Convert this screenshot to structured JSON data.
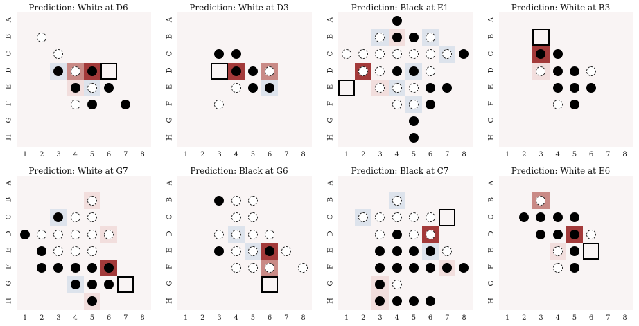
{
  "rows": [
    "A",
    "B",
    "C",
    "D",
    "E",
    "F",
    "G",
    "H"
  ],
  "cols": [
    "1",
    "2",
    "3",
    "4",
    "5",
    "6",
    "7",
    "8"
  ],
  "colors": {
    "board": "#f9f4f4",
    "heat_hi": "#a33a3a",
    "heat_mid": "#c98a86",
    "heat_low": "#f2dedd",
    "cool": "#dde3ec"
  },
  "boards": [
    {
      "title": "Prediction: White at D6",
      "target": "D6",
      "black": [
        "D3",
        "D5",
        "E4",
        "E6",
        "F5",
        "F7"
      ],
      "white": [
        "B2",
        "C3",
        "D4",
        "E5",
        "F4"
      ],
      "heat": {
        "D5": "hi",
        "D4": "mid",
        "E4": "low",
        "E5": "cool",
        "D3": "cool"
      }
    },
    {
      "title": "Prediction: White at D3",
      "target": "D3",
      "black": [
        "C3",
        "C4",
        "D4",
        "D5",
        "E5",
        "E6"
      ],
      "white": [
        "D6",
        "E4",
        "F3"
      ],
      "heat": {
        "D4": "hi",
        "D6": "mid",
        "E6": "cool"
      }
    },
    {
      "title": "Prediction: Black at E1",
      "target": "E1",
      "black": [
        "A4",
        "B4",
        "B5",
        "C8",
        "D4",
        "D5",
        "E7",
        "E6",
        "F6",
        "G5",
        "H5"
      ],
      "white": [
        "B3",
        "B6",
        "C1",
        "C2",
        "C3",
        "C4",
        "C5",
        "C6",
        "C7",
        "D2",
        "D3",
        "D6",
        "E3",
        "E4",
        "E5",
        "F4",
        "F5"
      ],
      "heat": {
        "D2": "hi",
        "B4": "low",
        "C7": "cool",
        "D5": "cool",
        "E4": "cool",
        "F5": "cool",
        "B3": "cool",
        "B6": "cool",
        "E3": "low"
      }
    },
    {
      "title": "Prediction: White at B3",
      "target": "B3",
      "black": [
        "C3",
        "C4",
        "D4",
        "D5",
        "E4",
        "E5",
        "E6",
        "F5"
      ],
      "white": [
        "D3",
        "D6",
        "F4"
      ],
      "heat": {
        "C3": "hi",
        "D3": "low"
      }
    },
    {
      "title": "Prediction: White at G7",
      "target": "G7",
      "black": [
        "C3",
        "D1",
        "E2",
        "F2",
        "F3",
        "F4",
        "F5",
        "F6",
        "G4",
        "G5",
        "G6",
        "H5"
      ],
      "white": [
        "B5",
        "C4",
        "C5",
        "D2",
        "D3",
        "D4",
        "D5",
        "D6",
        "E3",
        "E4",
        "E5"
      ],
      "heat": {
        "F6": "hi",
        "C3": "cool",
        "B5": "low",
        "D6": "low",
        "G4": "cool",
        "H5": "low"
      }
    },
    {
      "title": "Prediction: Black at G6",
      "target": "G6",
      "black": [
        "B3",
        "E3",
        "E6"
      ],
      "white": [
        "B4",
        "B5",
        "C4",
        "C5",
        "D3",
        "D4",
        "D5",
        "D6",
        "E4",
        "E5",
        "E7",
        "F4",
        "F5",
        "F6",
        "F8"
      ],
      "heat": {
        "E6": "hi",
        "F6": "mid",
        "D4": "cool",
        "E5": "cool"
      }
    },
    {
      "title": "Prediction: Black at C7",
      "target": "C7",
      "black": [
        "D4",
        "E3",
        "E4",
        "E5",
        "E6",
        "F3",
        "F4",
        "F5",
        "F6",
        "F7",
        "F8",
        "G3",
        "H3",
        "H4",
        "H5",
        "H6"
      ],
      "white": [
        "B4",
        "C2",
        "C3",
        "C4",
        "C5",
        "C6",
        "D3",
        "D5",
        "D6",
        "E7",
        "G4"
      ],
      "heat": {
        "D6": "hi",
        "B4": "cool",
        "C2": "cool",
        "E6": "cool",
        "F7": "low",
        "G3": "low",
        "H3": "low"
      }
    },
    {
      "title": "Prediction: White at E6",
      "target": "E6",
      "black": [
        "C2",
        "C3",
        "C4",
        "C5",
        "D3",
        "D4",
        "D5",
        "E5",
        "F5"
      ],
      "white": [
        "B3",
        "D6",
        "E4",
        "F4"
      ],
      "heat": {
        "D5": "hi",
        "B3": "mid",
        "E4": "low"
      }
    }
  ]
}
